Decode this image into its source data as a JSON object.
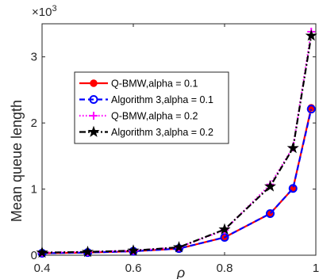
{
  "chart_data": {
    "type": "line",
    "title": "",
    "xlabel": "ρ",
    "ylabel": "Mean queue length",
    "y_exponent_label": "×10",
    "y_exponent_power": "3",
    "xlim": [
      0.4,
      1.0
    ],
    "ylim": [
      0,
      3.5
    ],
    "x_ticks": [
      0.4,
      0.6,
      0.8,
      1.0
    ],
    "x_tick_labels": [
      "0.4",
      "0.6",
      "0.8",
      "1"
    ],
    "y_ticks": [
      0,
      1,
      2,
      3
    ],
    "y_tick_labels": [
      "0",
      "1",
      "2",
      "3"
    ],
    "grid": false,
    "legend_position": "center-left",
    "series": [
      {
        "name": "Q-BMW,alpha = 0.1",
        "color": "#ff0000",
        "line": "solid",
        "marker": "dot",
        "x": [
          0.4,
          0.5,
          0.6,
          0.7,
          0.8,
          0.9,
          0.95,
          0.99
        ],
        "y": [
          0.03,
          0.04,
          0.06,
          0.1,
          0.27,
          0.63,
          1.01,
          2.23
        ]
      },
      {
        "name": "Algorithm 3,alpha = 0.1",
        "color": "#0000ff",
        "line": "dashed",
        "marker": "circle",
        "x": [
          0.4,
          0.5,
          0.6,
          0.7,
          0.8,
          0.9,
          0.95,
          0.99
        ],
        "y": [
          0.03,
          0.04,
          0.06,
          0.1,
          0.27,
          0.63,
          1.01,
          2.21
        ]
      },
      {
        "name": "Q-BMW,alpha = 0.2",
        "color": "#ff00ff",
        "line": "dotted",
        "marker": "plus",
        "x": [
          0.4,
          0.5,
          0.6,
          0.7,
          0.8,
          0.9,
          0.95,
          0.99
        ],
        "y": [
          0.04,
          0.05,
          0.07,
          0.12,
          0.38,
          1.07,
          1.63,
          3.38
        ]
      },
      {
        "name": "Algorithm 3,alpha = 0.2",
        "color": "#000000",
        "line": "dashdot",
        "marker": "star",
        "x": [
          0.4,
          0.5,
          0.6,
          0.7,
          0.8,
          0.9,
          0.95,
          0.99
        ],
        "y": [
          0.04,
          0.05,
          0.07,
          0.12,
          0.39,
          1.04,
          1.62,
          3.32
        ]
      }
    ]
  }
}
